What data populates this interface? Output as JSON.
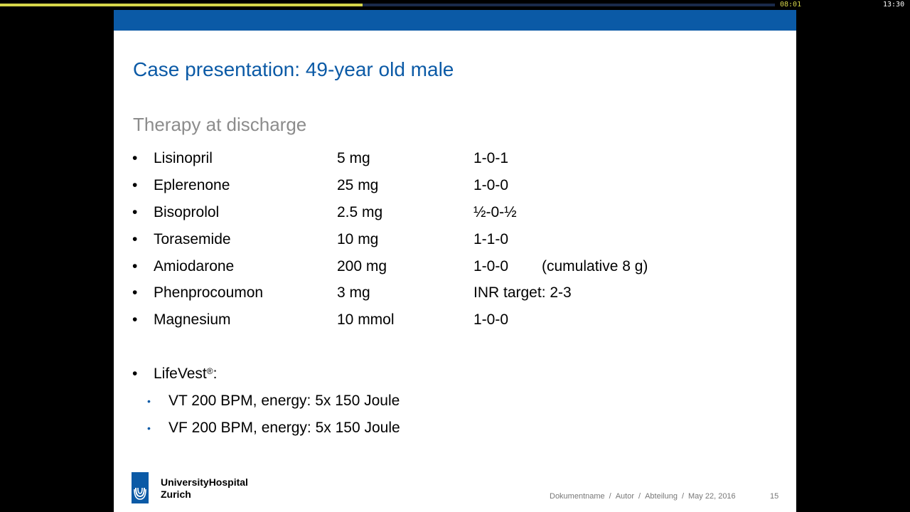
{
  "player": {
    "progress_fraction": 0.468,
    "elapsed": "08:01",
    "total": "13:30",
    "track_color": "#1a2a4a",
    "fill_color": "#d6d64a"
  },
  "slide": {
    "accent_color": "#0b5aa6",
    "title": "Case presentation: 49-year old male",
    "subtitle": "Therapy at discharge",
    "bullet": "•",
    "medications": [
      {
        "name": "Lisinopril",
        "dose": "5 mg",
        "schedule": "1-0-1",
        "note": ""
      },
      {
        "name": "Eplerenone",
        "dose": "25 mg",
        "schedule": "1-0-0",
        "note": ""
      },
      {
        "name": "Bisoprolol",
        "dose": "2.5 mg",
        "schedule": "½-0-½",
        "note": ""
      },
      {
        "name": "Torasemide",
        "dose": "10 mg",
        "schedule": "1-1-0",
        "note": ""
      },
      {
        "name": "Amiodarone",
        "dose": "200 mg",
        "schedule": "1-0-0",
        "note": "(cumulative 8 g)"
      },
      {
        "name": "Phenprocoumon",
        "dose": "3 mg",
        "schedule": "INR target: 2-3",
        "note": ""
      },
      {
        "name": "Magnesium",
        "dose": "10 mmol",
        "schedule": "1-0-0",
        "note": ""
      }
    ],
    "lifevest": {
      "label": "LifeVest",
      "mark": "®",
      "suffix": ":",
      "sub_bullet": "•",
      "items": [
        "VT 200 BPM, energy: 5x 150 Joule",
        "VF 200 BPM, energy: 5x 150 Joule"
      ]
    },
    "logo": {
      "line1": "UniversityHospital",
      "line2": "Zurich"
    },
    "footer": {
      "document": "Dokumentname",
      "author": "Autor",
      "department": "Abteilung",
      "date": "May 22, 2016",
      "sep": "/",
      "page": "15"
    }
  }
}
